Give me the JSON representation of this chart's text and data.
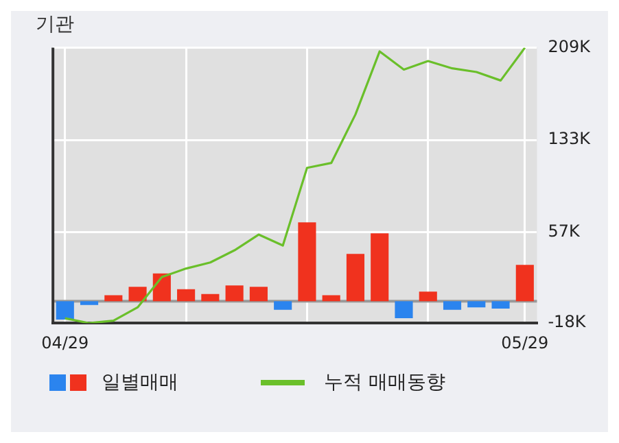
{
  "chart_data": {
    "type": "bar",
    "title": "기관",
    "categories": [
      "04/29",
      null,
      null,
      null,
      null,
      null,
      null,
      null,
      null,
      null,
      null,
      null,
      null,
      null,
      null,
      null,
      null,
      null,
      null,
      "05/29"
    ],
    "series": [
      {
        "name": "일별매매",
        "values": [
          -15,
          -3,
          5,
          12,
          23,
          10,
          6,
          13,
          12,
          -7,
          65,
          5,
          39,
          56,
          -14,
          8,
          -7,
          -5,
          -6,
          30
        ],
        "colors": [
          "#2b84ee",
          "#2b84ee",
          "#f0321e",
          "#f0321e",
          "#f0321e",
          "#f0321e",
          "#f0321e",
          "#f0321e",
          "#f0321e",
          "#2b84ee",
          "#f0321e",
          "#f0321e",
          "#f0321e",
          "#f0321e",
          "#2b84ee",
          "#f0321e",
          "#2b84ee",
          "#2b84ee",
          "#2b84ee",
          "#f0321e"
        ]
      },
      {
        "name": "누적 매매동향",
        "type": "line",
        "color": "#6abf2a",
        "values": [
          -14,
          -18,
          -16,
          -5,
          20,
          27,
          32,
          42,
          55,
          46,
          110,
          114,
          154,
          206,
          191,
          198,
          192,
          189,
          182,
          209
        ]
      }
    ],
    "ylim": [
      -18,
      209
    ],
    "yticks": [
      {
        "value": -18,
        "label": "-18K"
      },
      {
        "value": 57,
        "label": "57K"
      },
      {
        "value": 133,
        "label": "133K"
      },
      {
        "value": 209,
        "label": "209K"
      }
    ],
    "ref_lines": [
      {
        "axis": "y",
        "value": 0,
        "color": "#999999"
      }
    ],
    "grid": true,
    "legend": "bottom",
    "marker": "none",
    "line_style": "solid"
  }
}
